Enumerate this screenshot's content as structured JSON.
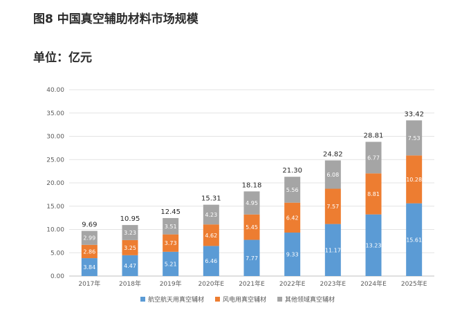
{
  "figure": {
    "title": "图8 中国真空辅助材料市场规模",
    "unit": "单位：亿元"
  },
  "chart_data": {
    "type": "bar",
    "stacked": true,
    "categories": [
      "2017年",
      "2018年",
      "2019年",
      "2020年E",
      "2021年E",
      "2022年E",
      "2023年E",
      "2024年E",
      "2025年E"
    ],
    "series": [
      {
        "name": "航空航天用真空辅材",
        "color": "#5b9bd5",
        "values": [
          3.84,
          4.47,
          5.21,
          6.46,
          7.77,
          9.33,
          11.17,
          13.23,
          15.61
        ]
      },
      {
        "name": "风电用真空辅材",
        "color": "#ed7d31",
        "values": [
          2.86,
          3.25,
          3.73,
          4.62,
          5.45,
          6.42,
          7.57,
          8.81,
          10.28
        ]
      },
      {
        "name": "其他领域真空辅材",
        "color": "#a5a5a5",
        "values": [
          2.99,
          3.23,
          3.51,
          4.23,
          4.95,
          5.56,
          6.08,
          6.77,
          7.53
        ]
      }
    ],
    "totals": [
      9.69,
      10.95,
      12.45,
      15.31,
      18.18,
      21.3,
      24.82,
      28.81,
      33.42
    ],
    "total_labels": [
      "9.69",
      "10.95",
      "12.45",
      "15.31",
      "18.18",
      "21.30",
      "24.82",
      "28.81",
      "33.42"
    ],
    "ylim": [
      0,
      40
    ],
    "yticks": [
      "0.00",
      "5.00",
      "10.00",
      "15.00",
      "20.00",
      "25.00",
      "30.00",
      "35.00",
      "40.00"
    ],
    "grid": true,
    "legend_position": "bottom",
    "xlabel": "",
    "ylabel": ""
  }
}
